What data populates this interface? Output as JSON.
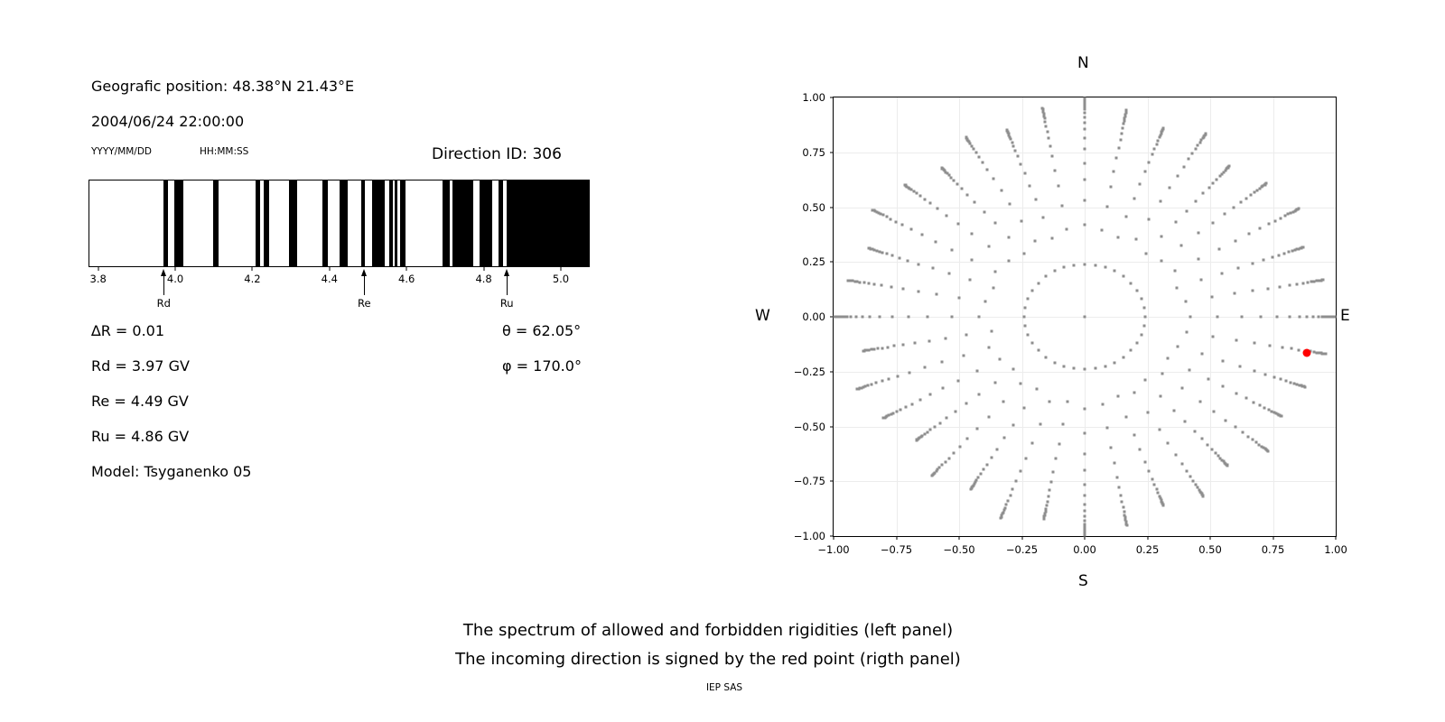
{
  "left_panel": {
    "geographic_position": "Geografic position: 48.38°N 21.43°E",
    "datetime": "2004/06/24 22:00:00",
    "date_format_label": "YYYY/MM/DD",
    "time_format_label": "HH:MM:SS",
    "direction_id_label": "Direction ID: 306",
    "values": {
      "delta_r": "∆R = 0.01",
      "rd": "Rd = 3.97 GV",
      "re": "Re = 4.49 GV",
      "ru": "Ru = 4.86 GV",
      "model": "Model: Tsyganenko 05",
      "theta": "θ = 62.05°",
      "phi": "φ = 170.0°"
    }
  },
  "right_panel": {
    "labels": {
      "north": "N",
      "south": "S",
      "west": "W",
      "east": "E"
    }
  },
  "caption": {
    "line1": "The spectrum of allowed and forbidden rigidities (left panel)",
    "line2": "The incoming direction is signed by the red point (rigth panel)",
    "credit": "IEP SAS"
  },
  "chart_data": [
    {
      "type": "bar",
      "subtype": "rigidity-spectrum-barcode",
      "description": "Spectrum of allowed (white) and forbidden (black) rigidities in GV",
      "x_range": [
        3.775,
        5.075
      ],
      "x_ticks": [
        3.8,
        4.0,
        4.2,
        4.4,
        4.6,
        4.8,
        5.0
      ],
      "x_tick_labels": [
        "3.8",
        "4.0",
        "4.2",
        "4.4",
        "4.6",
        "4.8",
        "5.0"
      ],
      "forbidden_bands": [
        [
          3.967,
          3.98
        ],
        [
          3.995,
          4.019
        ],
        [
          4.098,
          4.111
        ],
        [
          4.208,
          4.22
        ],
        [
          4.228,
          4.242
        ],
        [
          4.294,
          4.316
        ],
        [
          4.381,
          4.396
        ],
        [
          4.427,
          4.448
        ],
        [
          4.482,
          4.492
        ],
        [
          4.51,
          4.544
        ],
        [
          4.556,
          4.564
        ],
        [
          4.569,
          4.577
        ],
        [
          4.583,
          4.597
        ],
        [
          4.693,
          4.712
        ],
        [
          4.72,
          4.773
        ],
        [
          4.79,
          4.823
        ],
        [
          4.839,
          4.852
        ],
        [
          4.86,
          5.075
        ]
      ],
      "markers": [
        {
          "label": "Rd",
          "value": 3.97
        },
        {
          "label": "Re",
          "value": 4.49
        },
        {
          "label": "Ru",
          "value": 4.86
        }
      ],
      "colors": {
        "forbidden": "#000000",
        "allowed": "#ffffff"
      }
    },
    {
      "type": "scatter",
      "subtype": "incoming-directions-sky-map",
      "x_range": [
        -1,
        1
      ],
      "y_range": [
        -1,
        1
      ],
      "x_ticks": [
        -1,
        -0.75,
        -0.5,
        -0.25,
        0,
        0.25,
        0.5,
        0.75,
        1
      ],
      "x_tick_labels": [
        "−1.00",
        "−0.75",
        "−0.50",
        "−0.25",
        "0.00",
        "0.25",
        "0.50",
        "0.75",
        "1.00"
      ],
      "y_ticks": [
        1,
        0.75,
        0.5,
        0.25,
        0,
        -0.25,
        -0.5,
        -0.75,
        -1
      ],
      "y_tick_labels": [
        "1.00",
        "0.75",
        "0.50",
        "0.25",
        "0.00",
        "−0.25",
        "−0.50",
        "−0.75",
        "−1.00"
      ],
      "grid": true,
      "grid_positions": [
        -0.75,
        -0.5,
        -0.25,
        0,
        0.25,
        0.5,
        0.75
      ],
      "dot_color": "#8e8e8e",
      "center_dot": {
        "x": 0,
        "y": 0
      },
      "ring": {
        "radius": 0.24,
        "count": 36
      },
      "spokes": {
        "count": 36,
        "step_deg": 10,
        "radii": [
          0.42,
          0.53,
          0.625,
          0.7,
          0.765,
          0.815,
          0.855,
          0.885,
          0.91,
          0.93,
          0.946,
          0.958,
          0.968,
          0.976,
          0.982,
          0.987,
          0.991,
          0.995
        ],
        "tip_scale": [
          1.0,
          0.96,
          0.92,
          0.97,
          0.9,
          0.95,
          0.99,
          0.93,
          0.97,
          1.0,
          0.98,
          0.94,
          0.91,
          0.96,
          0.89,
          0.95,
          0.92,
          0.97,
          1.0,
          0.94,
          0.98,
          0.91,
          0.95,
          0.88,
          0.93,
          0.97,
          0.9,
          1.0,
          0.96,
          0.92,
          0.98,
          0.94,
          0.89,
          0.95,
          0.91,
          0.97
        ]
      },
      "red_point": {
        "x": 0.885,
        "y": -0.163,
        "color": "#ff0000"
      }
    }
  ]
}
